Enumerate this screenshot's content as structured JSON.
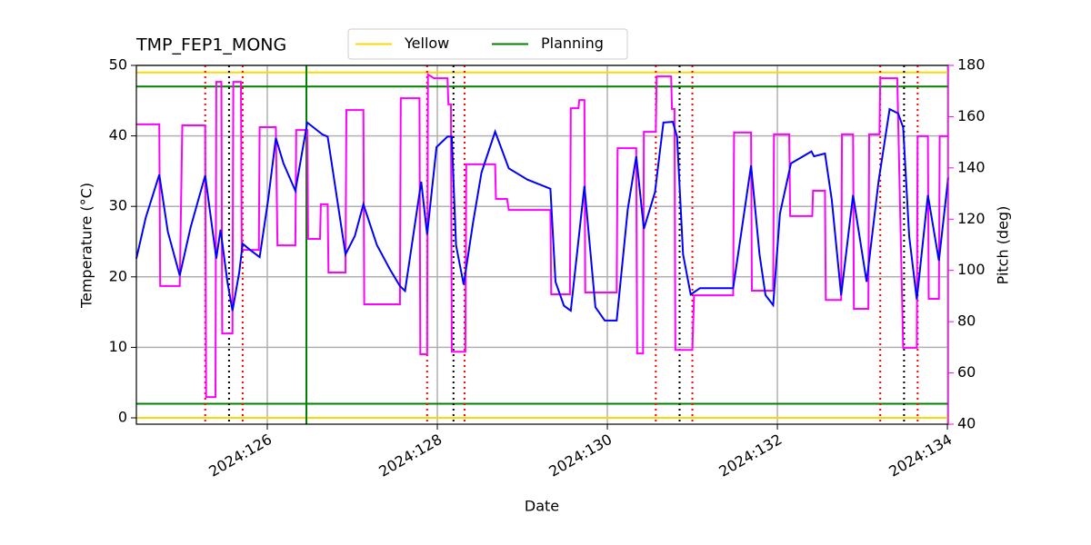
{
  "chart_data": {
    "type": "line",
    "title": "TMP_FEP1_MONG",
    "x_label": "Date",
    "y_label": "Temperature (°C)",
    "y2_label": "Pitch (deg)",
    "xlim": [
      124.46,
      134.01
    ],
    "xticks": [
      {
        "value": 126,
        "label": "2024:126"
      },
      {
        "value": 128,
        "label": "2024:128"
      },
      {
        "value": 130,
        "label": "2024:130"
      },
      {
        "value": 132,
        "label": "2024:132"
      },
      {
        "value": 134,
        "label": "2024:134"
      }
    ],
    "ylim": [
      -0.9,
      50
    ],
    "yticks": [
      0,
      10,
      20,
      30,
      40,
      50
    ],
    "y2lim": [
      40,
      180
    ],
    "y2ticks": [
      40,
      60,
      80,
      100,
      120,
      140,
      160,
      180
    ],
    "y2_color": "magenta",
    "grid": true,
    "legend": "upper center",
    "limits": [
      {
        "name": "Yellow",
        "color": "#ffd700",
        "values": [
          0,
          49
        ]
      },
      {
        "name": "Planning",
        "color": "green",
        "values": [
          2,
          47
        ]
      }
    ],
    "vlines": [
      {
        "color": "green",
        "style": "solid",
        "x": [
          126.46
        ]
      },
      {
        "color": "red",
        "style": "dotted",
        "x": [
          125.27,
          125.71,
          127.88,
          128.32,
          130.57,
          131.0,
          133.21,
          133.65
        ]
      },
      {
        "color": "black",
        "style": "dotted",
        "x": [
          125.55,
          128.19,
          130.85,
          133.49
        ]
      }
    ],
    "series": [
      {
        "color": "blue",
        "x": [
          124.46,
          124.57,
          124.73,
          124.83,
          124.97,
          125.1,
          125.27,
          125.4,
          125.45,
          125.53,
          125.59,
          125.67,
          125.71,
          125.8,
          125.91,
          126.01,
          126.1,
          126.19,
          126.33,
          126.47,
          126.65,
          126.71,
          126.79,
          126.92,
          127.03,
          127.13,
          127.29,
          127.45,
          127.56,
          127.62,
          127.81,
          127.88,
          127.99,
          128.12,
          128.17,
          128.22,
          128.31,
          128.42,
          128.52,
          128.68,
          128.84,
          129.06,
          129.33,
          129.39,
          129.49,
          129.57,
          129.73,
          129.86,
          129.97,
          130.11,
          130.24,
          130.34,
          130.43,
          130.56,
          130.66,
          130.77,
          130.82,
          130.89,
          130.98,
          131.09,
          131.48,
          131.57,
          131.69,
          131.79,
          131.86,
          131.95,
          132.03,
          132.16,
          132.4,
          132.43,
          132.56,
          132.64,
          132.75,
          132.89,
          133.05,
          133.19,
          133.32,
          133.42,
          133.48,
          133.55,
          133.64,
          133.77,
          133.9,
          134.01
        ],
        "values": [
          22.6,
          28.4,
          34.5,
          26.4,
          20.2,
          27.1,
          34.4,
          22.6,
          26.7,
          19.3,
          15.2,
          20.6,
          24.7,
          23.8,
          22.8,
          30.9,
          39.7,
          36.1,
          32.2,
          41.9,
          40.2,
          39.9,
          33.5,
          23.2,
          25.8,
          30.3,
          24.5,
          20.9,
          18.7,
          18.0,
          33.5,
          26.0,
          38.4,
          39.9,
          39.9,
          24.5,
          18.9,
          27.7,
          34.8,
          40.6,
          35.4,
          33.8,
          32.5,
          19.3,
          15.9,
          15.2,
          32.9,
          15.7,
          13.8,
          13.8,
          29.6,
          37.1,
          26.8,
          32.0,
          41.9,
          42.0,
          39.9,
          23.2,
          17.5,
          18.4,
          18.4,
          25.8,
          35.8,
          23.2,
          17.4,
          16.0,
          29.0,
          36.1,
          37.8,
          37.1,
          37.5,
          30.9,
          17.4,
          31.6,
          19.3,
          33.5,
          43.8,
          43.2,
          41.2,
          25.8,
          16.8,
          31.6,
          22.3,
          34.1
        ]
      },
      {
        "color": "magenta",
        "axis": "y2",
        "x": [
          124.46,
          124.73,
          124.74,
          124.97,
          125.0,
          125.27,
          125.28,
          125.39,
          125.4,
          125.46,
          125.47,
          125.59,
          125.6,
          125.69,
          125.7,
          125.9,
          125.91,
          126.1,
          126.12,
          126.33,
          126.34,
          126.47,
          126.48,
          126.62,
          126.63,
          126.71,
          126.72,
          126.92,
          126.93,
          127.13,
          127.14,
          127.56,
          127.57,
          127.79,
          127.8,
          127.88,
          127.89,
          127.96,
          128.12,
          128.13,
          128.16,
          128.17,
          128.33,
          128.34,
          128.68,
          128.69,
          128.82,
          128.84,
          129.33,
          129.34,
          129.56,
          129.57,
          129.66,
          129.67,
          129.73,
          129.74,
          130.11,
          130.12,
          130.34,
          130.35,
          130.42,
          130.43,
          130.57,
          130.58,
          130.75,
          130.76,
          130.79,
          130.8,
          131.0,
          131.02,
          131.48,
          131.49,
          131.69,
          131.7,
          131.95,
          131.96,
          132.14,
          132.15,
          132.41,
          132.42,
          132.56,
          132.57,
          132.75,
          132.76,
          132.89,
          132.9,
          133.07,
          133.08,
          133.2,
          133.21,
          133.41,
          133.48,
          133.64,
          133.65,
          133.77,
          133.78,
          133.9,
          133.91,
          134.01
        ],
        "values": [
          157,
          157,
          93.9,
          93.9,
          156.6,
          156.6,
          50.6,
          50.6,
          173.6,
          173.6,
          75.4,
          75.4,
          173.6,
          173.6,
          108,
          108,
          155.9,
          155.9,
          109.8,
          109.8,
          154.8,
          154.8,
          112.3,
          112.3,
          125.8,
          125.8,
          99.2,
          99.2,
          162.6,
          162.6,
          86.8,
          86.8,
          167.2,
          167.2,
          67.3,
          67.3,
          176.5,
          175,
          175,
          164.8,
          164.8,
          68.3,
          68.3,
          141.4,
          141.4,
          127.9,
          127.9,
          123.6,
          123.6,
          90.7,
          90.7,
          163.3,
          163.3,
          166.5,
          166.5,
          91.4,
          91.4,
          147.7,
          147.7,
          67.6,
          67.6,
          154.1,
          154.1,
          175.7,
          175.7,
          163,
          163,
          69,
          69,
          90.3,
          90.3,
          153.8,
          153.8,
          92.1,
          92.1,
          153.1,
          153.1,
          121.2,
          121.2,
          131.1,
          131.1,
          88.5,
          88.5,
          153.1,
          153.1,
          85,
          85,
          153.1,
          153.1,
          175,
          175,
          69.8,
          69.8,
          152.4,
          152.4,
          88.9,
          88.9,
          152.4,
          152.4
        ]
      }
    ]
  }
}
